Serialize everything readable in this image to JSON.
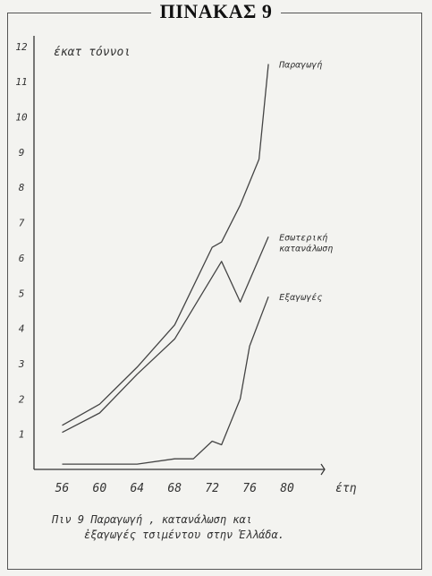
{
  "page_title": "ΠΙΝΑΚΑΣ 9",
  "chart_data": {
    "type": "line",
    "ylabel": "έκατ τόννοι",
    "xlabel": "έτη",
    "caption_line1": "Πιν 9   Παραγωγή , κατανάλωση και",
    "caption_line2": "ἐξαγωγές τσιμέντου στην Ἑλλάδα.",
    "x_ticks": [
      "56",
      "60",
      "64",
      "68",
      "72",
      "76",
      "80"
    ],
    "y_ticks": [
      "1",
      "2",
      "3",
      "4",
      "5",
      "6",
      "7",
      "8",
      "9",
      "10",
      "11",
      "12"
    ],
    "xlim": [
      53,
      84
    ],
    "ylim": [
      0,
      12.3
    ],
    "series": [
      {
        "name": "Παραγωγή",
        "label_lines": [
          "Παραγωγή"
        ],
        "x": [
          56,
          60,
          64,
          68,
          72,
          73,
          75,
          77,
          78
        ],
        "y": [
          1.25,
          1.85,
          2.9,
          4.1,
          6.3,
          6.45,
          7.5,
          8.8,
          11.5
        ]
      },
      {
        "name": "Εσωτερική κατανάλωση",
        "label_lines": [
          "Εσωτερική",
          "κατανάλωση"
        ],
        "x": [
          56,
          60,
          64,
          68,
          73,
          75,
          78
        ],
        "y": [
          1.05,
          1.6,
          2.7,
          3.7,
          5.9,
          4.75,
          6.6
        ]
      },
      {
        "name": "Εξαγωγές",
        "label_lines": [
          "Εξαγωγές"
        ],
        "x": [
          56,
          64,
          68,
          70,
          72,
          73,
          75,
          76,
          78
        ],
        "y": [
          0.15,
          0.15,
          0.3,
          0.3,
          0.8,
          0.7,
          2.0,
          3.5,
          4.9
        ]
      }
    ]
  }
}
